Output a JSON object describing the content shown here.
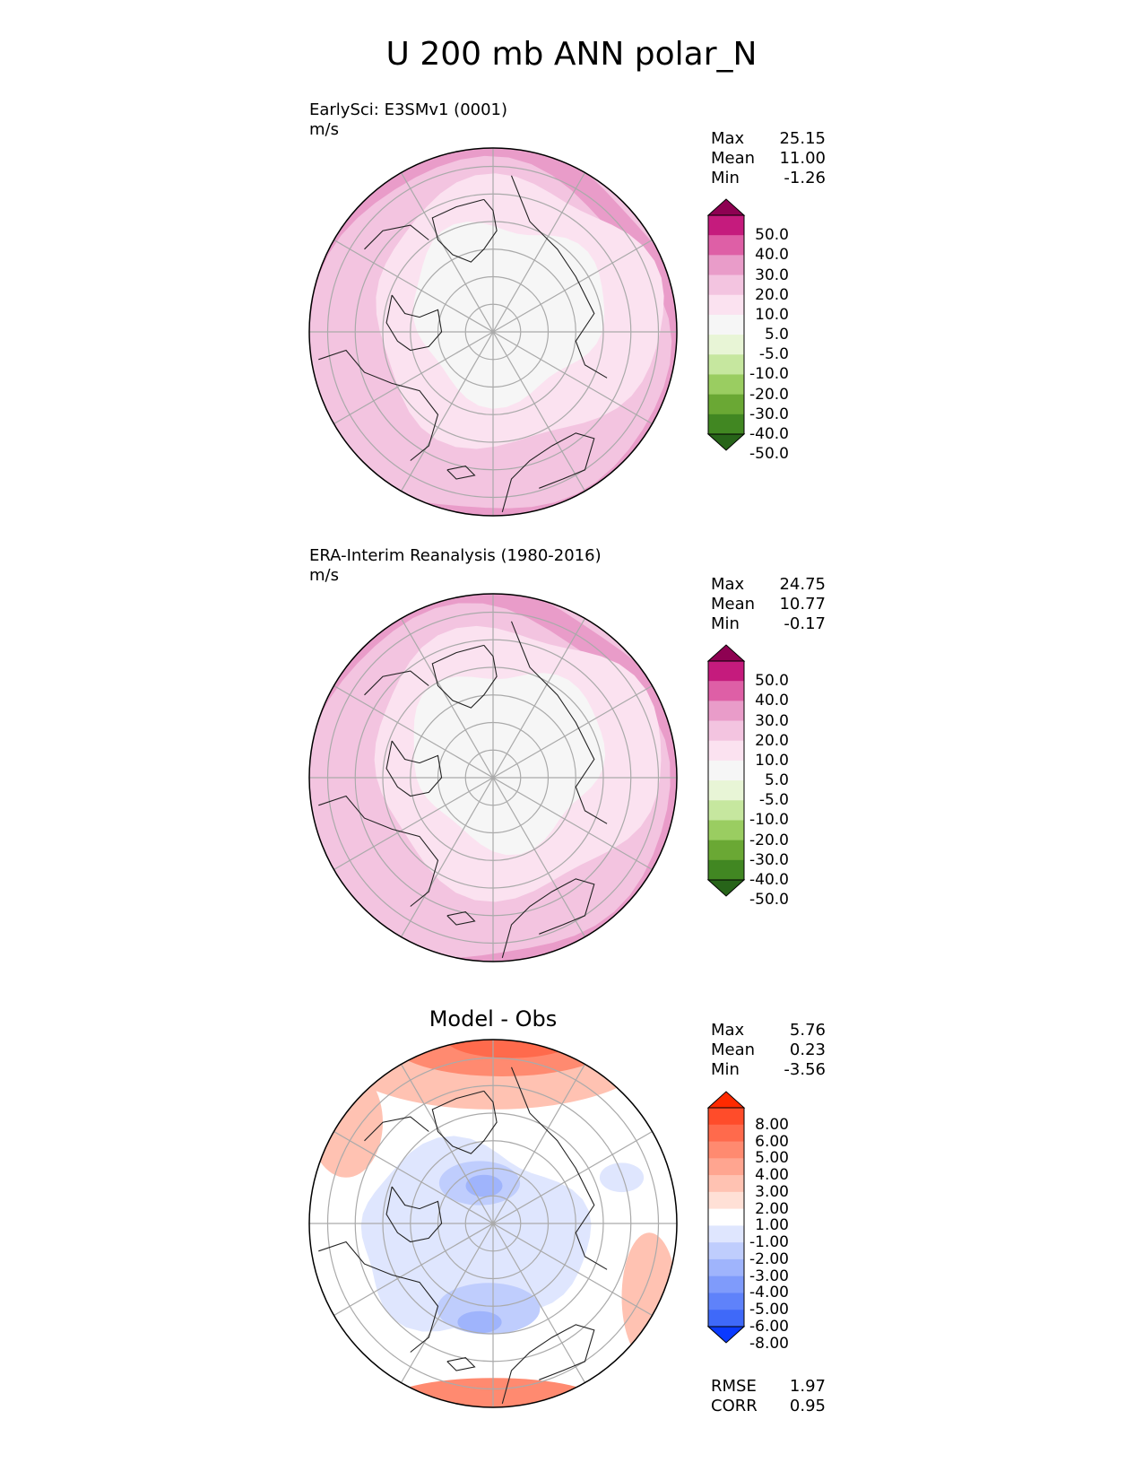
{
  "figure": {
    "title": "U 200 mb ANN polar_N"
  },
  "chart_data": [
    {
      "type": "heatmap",
      "projection": "north-polar-stereographic",
      "title": "",
      "label": "EarlySci: E3SMv1 (0001)",
      "units": "m/s",
      "stats": {
        "max_label": "Max",
        "max": "25.15",
        "mean_label": "Mean",
        "mean": "11.00",
        "min_label": "Min",
        "min": "-1.26"
      },
      "colorbar": {
        "levels": [
          "50.0",
          "40.0",
          "30.0",
          "20.0",
          "10.0",
          "5.0",
          "-5.0",
          "-10.0",
          "-20.0",
          "-30.0",
          "-40.0",
          "-50.0"
        ],
        "colors": [
          "#8e0152",
          "#c51b7d",
          "#de5fa6",
          "#e99cc9",
          "#f3c4e0",
          "#fbe2f0",
          "#f6f6f6",
          "#e8f5d6",
          "#c6e79f",
          "#9acd61",
          "#6aa834",
          "#418722",
          "#276419"
        ]
      },
      "field_colors": {
        "ring5": "#e99cc9",
        "ring10": "#f3c4e0",
        "ring_low": "#fbe2f0",
        "core": "#f6f6f6"
      }
    },
    {
      "type": "heatmap",
      "projection": "north-polar-stereographic",
      "title": "",
      "label": "ERA-Interim Reanalysis (1980-2016)",
      "units": "m/s",
      "stats": {
        "max_label": "Max",
        "max": "24.75",
        "mean_label": "Mean",
        "mean": "10.77",
        "min_label": "Min",
        "min": "-0.17"
      },
      "colorbar": {
        "levels": [
          "50.0",
          "40.0",
          "30.0",
          "20.0",
          "10.0",
          "5.0",
          "-5.0",
          "-10.0",
          "-20.0",
          "-30.0",
          "-40.0",
          "-50.0"
        ],
        "colors": [
          "#8e0152",
          "#c51b7d",
          "#de5fa6",
          "#e99cc9",
          "#f3c4e0",
          "#fbe2f0",
          "#f6f6f6",
          "#e8f5d6",
          "#c6e79f",
          "#9acd61",
          "#6aa834",
          "#418722",
          "#276419"
        ]
      },
      "field_colors": {
        "ring5": "#e99cc9",
        "ring10": "#f3c4e0",
        "ring_low": "#fbe2f0",
        "core": "#f6f6f6"
      }
    },
    {
      "type": "heatmap",
      "projection": "north-polar-stereographic",
      "title": "Model - Obs",
      "label": "",
      "units": "",
      "stats": {
        "max_label": "Max",
        "max": "5.76",
        "mean_label": "Mean",
        "mean": "0.23",
        "min_label": "Min",
        "min": "-3.56"
      },
      "metrics": {
        "rmse_label": "RMSE",
        "rmse": "1.97",
        "corr_label": "CORR",
        "corr": "0.95"
      },
      "colorbar": {
        "levels": [
          "8.00",
          "6.00",
          "5.00",
          "4.00",
          "3.00",
          "2.00",
          "1.00",
          "-1.00",
          "-2.00",
          "-3.00",
          "-4.00",
          "-5.00",
          "-6.00",
          "-8.00"
        ],
        "colors": [
          "#ff2a00",
          "#ff4c2a",
          "#ff6a4c",
          "#ff8a70",
          "#ffa590",
          "#ffc2b2",
          "#ffe0d6",
          "#ffffff",
          "#dfe6fe",
          "#bfcdfd",
          "#9fb4fc",
          "#7f9bfb",
          "#5f82fa",
          "#3f69f9",
          "#0a3aff"
        ]
      },
      "field_colors": {
        "pos_strong": "#ff6a4c",
        "pos_mid": "#ff8a70",
        "pos_weak": "#ffc2b2",
        "neutral": "#ffffff",
        "neg_weak": "#dfe6fe",
        "neg_mid": "#bfcdfd",
        "neg_strong": "#9fb4fc"
      }
    }
  ]
}
